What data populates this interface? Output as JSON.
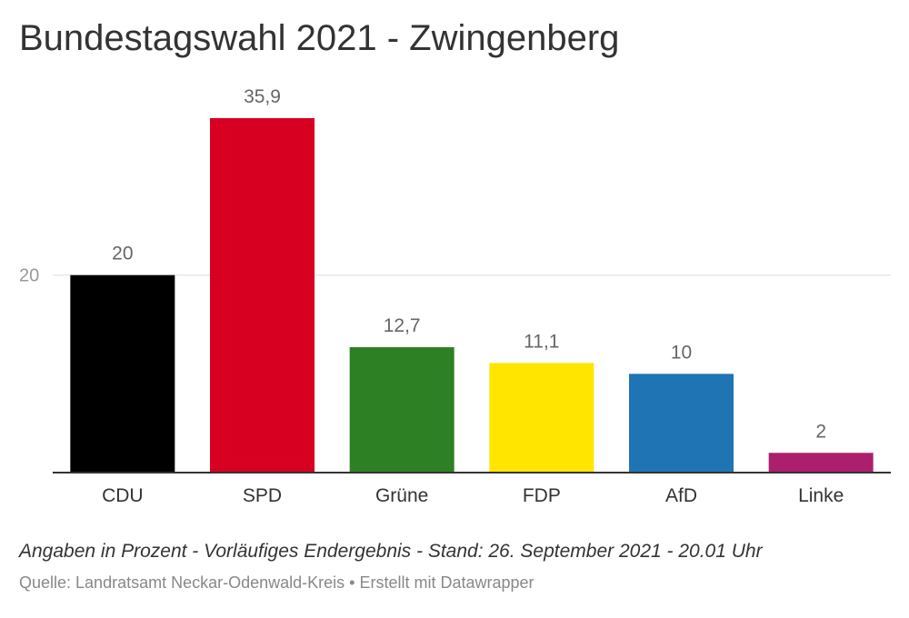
{
  "title": "Bundestagswahl 2021 - Zwingenberg",
  "note": "Angaben in Prozent - Vorläufiges Endergebnis - Stand: 26. September 2021 - 20.01 Uhr",
  "source": {
    "text": "Quelle: Landratsamt Neckar-Odenwald-Kreis",
    "separator": " • ",
    "credit": "Erstellt mit Datawrapper"
  },
  "chart_data": {
    "type": "bar",
    "title": "Bundestagswahl 2021 - Zwingenberg",
    "categories": [
      "CDU",
      "SPD",
      "Grüne",
      "FDP",
      "AfD",
      "Linke"
    ],
    "values": [
      20,
      35.9,
      12.7,
      11.1,
      10,
      2
    ],
    "value_labels": [
      "20",
      "35,9",
      "12,7",
      "11,1",
      "10",
      "2"
    ],
    "colors": [
      "#000000",
      "#d80021",
      "#2e8025",
      "#ffe500",
      "#1f75b4",
      "#ac1f6f"
    ],
    "y_ticks": [
      {
        "value": 20,
        "label": "20"
      }
    ],
    "ylim": [
      0,
      35.9
    ],
    "grid": true,
    "xlabel": "",
    "ylabel": ""
  }
}
